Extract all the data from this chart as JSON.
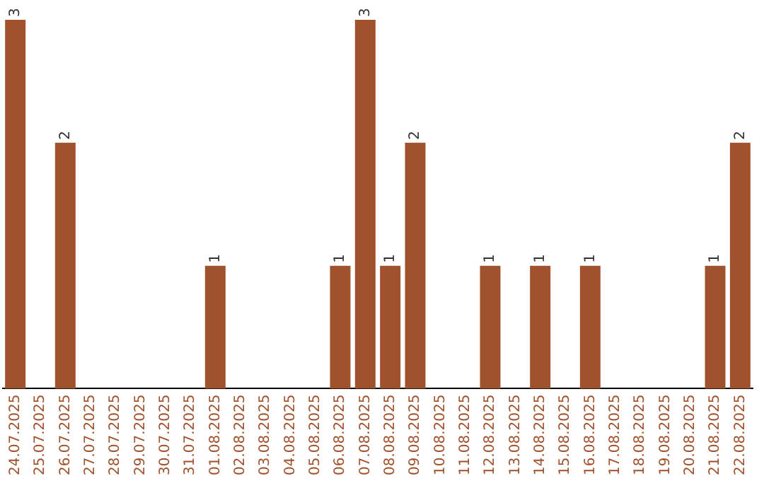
{
  "chart_data": {
    "type": "bar",
    "categories": [
      "24.07.2025",
      "25.07.2025",
      "26.07.2025",
      "27.07.2025",
      "28.07.2025",
      "29.07.2025",
      "30.07.2025",
      "31.07.2025",
      "01.08.2025",
      "02.08.2025",
      "03.08.2025",
      "04.08.2025",
      "05.08.2025",
      "06.08.2025",
      "07.08.2025",
      "08.08.2025",
      "09.08.2025",
      "10.08.2025",
      "11.08.2025",
      "12.08.2025",
      "13.08.2025",
      "14.08.2025",
      "15.08.2025",
      "16.08.2025",
      "17.08.2025",
      "18.08.2025",
      "19.08.2025",
      "20.08.2025",
      "21.08.2025",
      "22.08.2025"
    ],
    "values": [
      3,
      0,
      2,
      0,
      0,
      0,
      0,
      0,
      1,
      0,
      0,
      0,
      0,
      1,
      3,
      1,
      2,
      0,
      0,
      1,
      0,
      1,
      0,
      1,
      0,
      0,
      0,
      0,
      1,
      2
    ],
    "value_labels": [
      "3",
      null,
      "2",
      null,
      null,
      null,
      null,
      null,
      "1",
      null,
      null,
      null,
      null,
      "1",
      "3",
      "1",
      "2",
      null,
      null,
      "1",
      null,
      "1",
      null,
      "1",
      null,
      null,
      null,
      null,
      "1",
      "2"
    ],
    "color": "#a0522d",
    "grid": false,
    "tick_labels": "x"
  }
}
